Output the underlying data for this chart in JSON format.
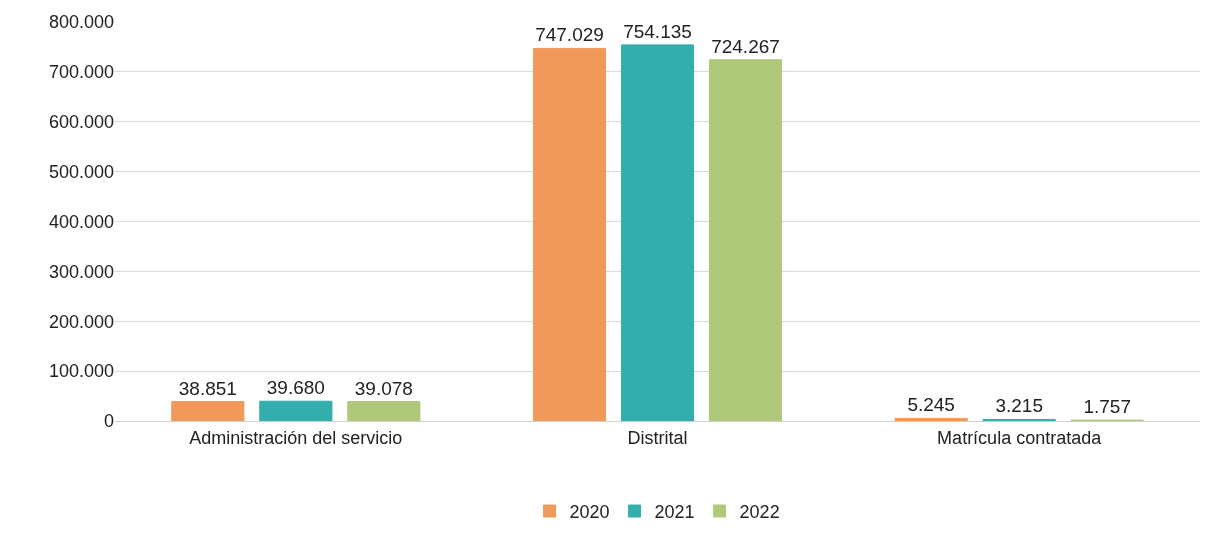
{
  "chart_data": {
    "type": "bar",
    "categories": [
      "Administración del servicio",
      "Distrital",
      "Matrícula contratada"
    ],
    "series": [
      {
        "name": "2020",
        "color": "#f0995a",
        "values": [
          38851,
          747029,
          5245
        ],
        "value_labels": [
          "38.851",
          "747.029",
          "5.245"
        ]
      },
      {
        "name": "2021",
        "color": "#33aeac",
        "values": [
          39680,
          754135,
          3215
        ],
        "value_labels": [
          "39.680",
          "754.135",
          "3.215"
        ]
      },
      {
        "name": "2022",
        "color": "#aec97a",
        "values": [
          39078,
          724267,
          1757
        ],
        "value_labels": [
          "39.078",
          "724.267",
          "1.757"
        ]
      }
    ],
    "ylim": [
      0,
      800000
    ],
    "yticks": [
      {
        "value": 0,
        "label": "0"
      },
      {
        "value": 100000,
        "label": "100.000"
      },
      {
        "value": 200000,
        "label": "200.000"
      },
      {
        "value": 300000,
        "label": "300.000"
      },
      {
        "value": 400000,
        "label": "400.000"
      },
      {
        "value": 500000,
        "label": "500.000"
      },
      {
        "value": 600000,
        "label": "600.000"
      },
      {
        "value": 700000,
        "label": "700.000"
      },
      {
        "value": 800000,
        "label": "800.000"
      }
    ],
    "grid": "y",
    "legend": "bottom"
  }
}
